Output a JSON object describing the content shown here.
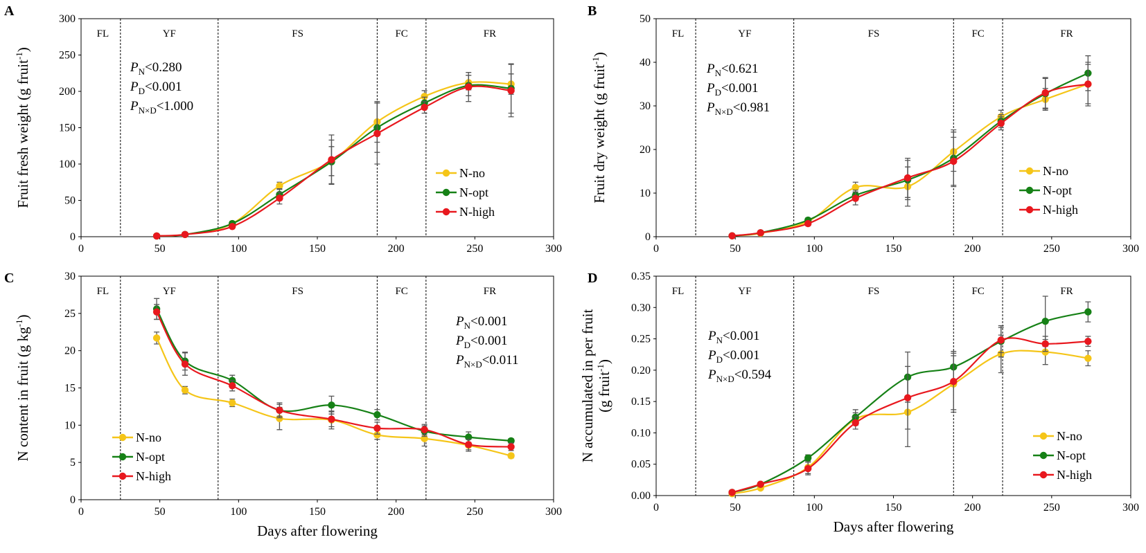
{
  "figure": {
    "stage_names": [
      "FL",
      "YF",
      "FS",
      "FC",
      "FR"
    ],
    "stage_boundaries": [
      25,
      87,
      188,
      219
    ],
    "x_label": "Days after flowering",
    "x_ticks": [
      0,
      50,
      100,
      150,
      200,
      250,
      300
    ],
    "x_range": [
      0,
      300
    ]
  },
  "colors": {
    "N-no": "#F5C518",
    "N-opt": "#168116",
    "N-high": "#E8181E"
  },
  "chart_data": [
    {
      "type": "line",
      "panel": "A",
      "ylabel_main": "Fruit fresh weight (g fruit",
      "ylabel_sup": "-1",
      "ylabel_end": ")",
      "ylim": [
        0,
        300
      ],
      "yticks": [
        "0",
        "50",
        "100",
        "150",
        "200",
        "250",
        "300"
      ],
      "x": [
        48,
        66,
        96,
        126,
        159,
        188,
        218,
        246,
        273
      ],
      "series": [
        {
          "name": "N-no",
          "values": [
            1,
            3,
            18,
            70,
            104,
            158,
            193,
            212,
            210
          ],
          "err": [
            0,
            1,
            3,
            5,
            20,
            28,
            8,
            10,
            14
          ]
        },
        {
          "name": "N-opt",
          "values": [
            1,
            3,
            18,
            58,
            103,
            150,
            184,
            208,
            204
          ],
          "err": [
            0,
            1,
            3,
            8,
            30,
            34,
            8,
            14,
            34
          ]
        },
        {
          "name": "N-high",
          "values": [
            1,
            3,
            14,
            53,
            106,
            142,
            178,
            206,
            201
          ],
          "err": [
            0,
            1,
            2,
            8,
            34,
            42,
            8,
            20,
            36
          ]
        }
      ],
      "legend_position": "bottom-right",
      "stats": [
        {
          "p": "P",
          "sub": "N",
          "rest": "<0.280"
        },
        {
          "p": "P",
          "sub": "D",
          "rest": "<0.001"
        },
        {
          "p": "P",
          "sub": "N×D",
          "rest": "<1.000"
        }
      ]
    },
    {
      "type": "line",
      "panel": "B",
      "ylabel_main": "Fruit dry weight (g fruit",
      "ylabel_sup": "-1",
      "ylabel_end": ")",
      "ylim": [
        0,
        50
      ],
      "yticks": [
        "0",
        "10",
        "20",
        "30",
        "40",
        "50"
      ],
      "x": [
        48,
        66,
        96,
        126,
        159,
        188,
        218,
        246,
        273
      ],
      "series": [
        {
          "name": "N-no",
          "values": [
            0.2,
            0.8,
            3.5,
            11.3,
            11.5,
            19.5,
            27.5,
            31.5,
            35.0
          ],
          "err": [
            0,
            0.2,
            0.5,
            1.2,
            4.5,
            4.5,
            1.5,
            2.5,
            4.5
          ]
        },
        {
          "name": "N-opt",
          "values": [
            0.2,
            0.9,
            3.8,
            9.5,
            13.0,
            18.0,
            26.5,
            32.8,
            37.5
          ],
          "err": [
            0,
            0.2,
            0.5,
            1.2,
            4.5,
            6.5,
            1.5,
            3.5,
            4.0
          ]
        },
        {
          "name": "N-high",
          "values": [
            0.2,
            0.9,
            3.0,
            8.8,
            13.5,
            17.3,
            26.0,
            33.0,
            35.0
          ],
          "err": [
            0,
            0.2,
            0.5,
            1.5,
            4.5,
            5.5,
            1.5,
            3.5,
            5.0
          ]
        }
      ],
      "legend_position": "bottom-right",
      "stats": [
        {
          "p": "P",
          "sub": "N",
          "rest": "<0.621"
        },
        {
          "p": "P",
          "sub": "D",
          "rest": "<0.001"
        },
        {
          "p": "P",
          "sub": "N×D",
          "rest": "<0.981"
        }
      ]
    },
    {
      "type": "line",
      "panel": "C",
      "ylabel_main": "N content in fruit (g kg",
      "ylabel_sup": "-1",
      "ylabel_end": ")",
      "ylim": [
        0,
        30
      ],
      "yticks": [
        "0",
        "5",
        "10",
        "15",
        "20",
        "25",
        "30"
      ],
      "x": [
        48,
        66,
        96,
        126,
        159,
        188,
        218,
        246,
        273
      ],
      "series": [
        {
          "name": "N-no",
          "values": [
            21.7,
            14.7,
            13.0,
            10.9,
            10.7,
            8.7,
            8.2,
            7.3,
            5.9
          ],
          "err": [
            0.8,
            0.5,
            0.5,
            1.5,
            1.2,
            0.6,
            1.0,
            0.8,
            0.3
          ]
        },
        {
          "name": "N-opt",
          "values": [
            25.6,
            18.6,
            16.0,
            12.0,
            12.7,
            11.4,
            9.2,
            8.4,
            7.9
          ],
          "err": [
            1.4,
            1.2,
            0.7,
            1.0,
            1.2,
            0.7,
            0.7,
            0.7,
            0.3
          ]
        },
        {
          "name": "N-high",
          "values": [
            25.2,
            18.2,
            15.3,
            12.0,
            10.8,
            9.6,
            9.4,
            7.4,
            7.1
          ],
          "err": [
            1.0,
            1.5,
            0.7,
            0.8,
            1.0,
            0.8,
            0.7,
            0.7,
            0.5
          ]
        }
      ],
      "legend_position": "bottom-left",
      "stats": [
        {
          "p": "P",
          "sub": "N",
          "rest": "<0.001"
        },
        {
          "p": "P",
          "sub": "D",
          "rest": "<0.001"
        },
        {
          "p": "P",
          "sub": "N×D",
          "rest": "<0.011"
        }
      ]
    },
    {
      "type": "line",
      "panel": "D",
      "ylabel_main": "N accumulated in per fruit",
      "ylabel2_main": "(g fruit",
      "ylabel_sup": "-1",
      "ylabel_end": ")",
      "ylim": [
        0,
        0.35
      ],
      "yticks": [
        "0.00",
        "0.05",
        "0.10",
        "0.15",
        "0.20",
        "0.25",
        "0.30",
        "0.35"
      ],
      "x": [
        48,
        66,
        96,
        126,
        159,
        188,
        218,
        246,
        273
      ],
      "series": [
        {
          "name": "N-no",
          "values": [
            0.003,
            0.012,
            0.045,
            0.122,
            0.133,
            0.178,
            0.226,
            0.229,
            0.219
          ],
          "err": [
            0,
            0.002,
            0.01,
            0.01,
            0.055,
            0.045,
            0.03,
            0.02,
            0.012
          ]
        },
        {
          "name": "N-opt",
          "values": [
            0.005,
            0.018,
            0.06,
            0.125,
            0.189,
            0.205,
            0.246,
            0.278,
            0.293
          ],
          "err": [
            0,
            0.002,
            0.005,
            0.012,
            0.04,
            0.025,
            0.025,
            0.04,
            0.016
          ]
        },
        {
          "name": "N-high",
          "values": [
            0.005,
            0.018,
            0.043,
            0.116,
            0.156,
            0.182,
            0.248,
            0.242,
            0.246
          ],
          "err": [
            0,
            0.002,
            0.01,
            0.01,
            0.05,
            0.045,
            0.02,
            0.012,
            0.008
          ]
        }
      ],
      "legend_position": "bottom-right",
      "stats": [
        {
          "p": "P",
          "sub": "N",
          "rest": "<0.001"
        },
        {
          "p": "P",
          "sub": "D",
          "rest": "<0.001"
        },
        {
          "p": "P",
          "sub": "N×D",
          "rest": "<0.594"
        }
      ]
    }
  ]
}
